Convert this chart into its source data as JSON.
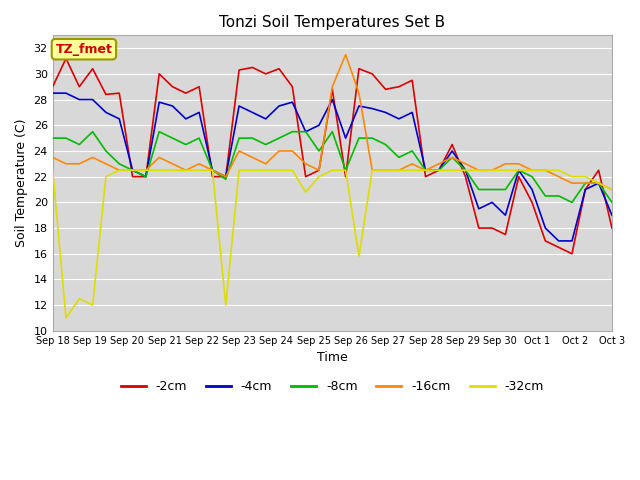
{
  "title": "Tonzi Soil Temperatures Set B",
  "xlabel": "Time",
  "ylabel": "Soil Temperature (C)",
  "ylim": [
    10,
    33
  ],
  "yticks": [
    10,
    12,
    14,
    16,
    18,
    20,
    22,
    24,
    26,
    28,
    30,
    32
  ],
  "annotation_text": "TZ_fmet",
  "annotation_color": "#cc0000",
  "annotation_bg": "#ffff99",
  "annotation_border": "#999900",
  "x_labels": [
    "Sep 18",
    "Sep 19",
    "Sep 20",
    "Sep 21",
    "Sep 22",
    "Sep 23",
    "Sep 24",
    "Sep 25",
    "Sep 26",
    "Sep 27",
    "Sep 28",
    "Sep 29",
    "Sep 30",
    "Oct 1",
    "Oct 2",
    "Oct 3"
  ],
  "bg_color": "#d8d8d8",
  "series": {
    "-2cm": {
      "color": "#dd0000",
      "lw": 1.2,
      "y": [
        29,
        31.2,
        29,
        30.4,
        28.4,
        28.5,
        22,
        22,
        30,
        29,
        28.5,
        29,
        22,
        22,
        30.3,
        30.5,
        30,
        30.4,
        29,
        22,
        22.5,
        28.8,
        22,
        30.4,
        30,
        28.8,
        29,
        29.5,
        22,
        22.5,
        24.5,
        22,
        18,
        18,
        17.5,
        22,
        20,
        17,
        16.5,
        16,
        21,
        22.5,
        18
      ]
    },
    "-4cm": {
      "color": "#0000cc",
      "lw": 1.2,
      "y": [
        28.5,
        28.5,
        28,
        28,
        27,
        26.5,
        22.5,
        22,
        27.8,
        27.5,
        26.5,
        27,
        22.5,
        22,
        27.5,
        27,
        26.5,
        27.5,
        27.8,
        25.5,
        26,
        28,
        25,
        27.5,
        27.3,
        27,
        26.5,
        27,
        22.5,
        22.5,
        24,
        22.5,
        19.5,
        20,
        19,
        22.5,
        21,
        18,
        17,
        17,
        21,
        21.5,
        19
      ]
    },
    "-8cm": {
      "color": "#00bb00",
      "lw": 1.2,
      "y": [
        25,
        25,
        24.5,
        25.5,
        24,
        23,
        22.5,
        22,
        25.5,
        25,
        24.5,
        25,
        22.5,
        21.8,
        25,
        25,
        24.5,
        25,
        25.5,
        25.5,
        24,
        25.5,
        22.5,
        25,
        25,
        24.5,
        23.5,
        24,
        22.5,
        22.5,
        23.5,
        22.5,
        21,
        21,
        21,
        22.5,
        22,
        20.5,
        20.5,
        20,
        21.5,
        21.5,
        20
      ]
    },
    "-16cm": {
      "color": "#ff8800",
      "lw": 1.2,
      "y": [
        23.5,
        23,
        23,
        23.5,
        23,
        22.5,
        22.5,
        22.5,
        23.5,
        23,
        22.5,
        23,
        22.5,
        22,
        24,
        23.5,
        23,
        24,
        24,
        23,
        22.5,
        29,
        31.5,
        28.5,
        22.5,
        22.5,
        22.5,
        23,
        22.5,
        23,
        23.5,
        23,
        22.5,
        22.5,
        23,
        23,
        22.5,
        22.5,
        22,
        21.5,
        21.5,
        21.5,
        21
      ]
    },
    "-32cm": {
      "color": "#dddd00",
      "lw": 1.2,
      "y": [
        22.5,
        11,
        12.5,
        12,
        22,
        22.5,
        22.5,
        22.5,
        22.5,
        22.5,
        22.5,
        22.5,
        22.5,
        12,
        22.5,
        22.5,
        22.5,
        22.5,
        22.5,
        20.8,
        22,
        22.5,
        22.5,
        15.8,
        22.5,
        22.5,
        22.5,
        22.5,
        22.5,
        22.5,
        22.5,
        22.5,
        22.5,
        22.5,
        22.5,
        22.5,
        22.5,
        22.5,
        22.5,
        22,
        22,
        21.5,
        21
      ]
    }
  },
  "legend": [
    {
      "label": "-2cm",
      "color": "#dd0000"
    },
    {
      "label": "-4cm",
      "color": "#0000cc"
    },
    {
      "label": "-8cm",
      "color": "#00bb00"
    },
    {
      "label": "-16cm",
      "color": "#ff8800"
    },
    {
      "label": "-32cm",
      "color": "#dddd00"
    }
  ]
}
